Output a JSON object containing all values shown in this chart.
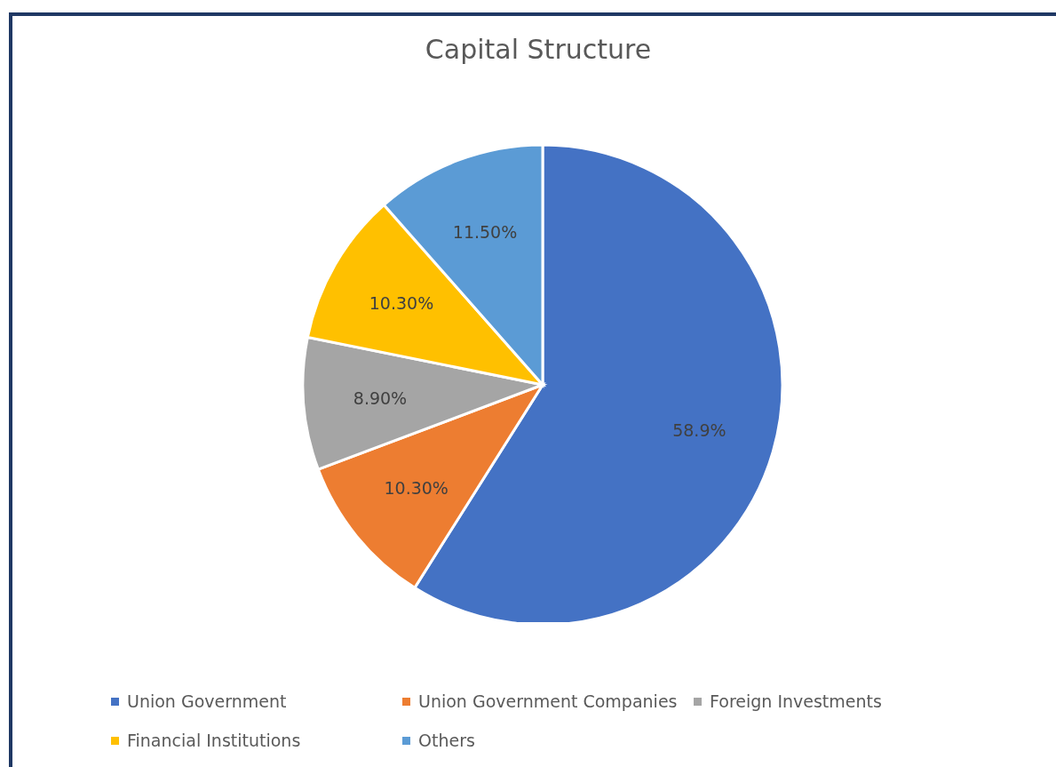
{
  "chart_data": {
    "type": "pie",
    "title": "Capital Structure",
    "categories": [
      "Union Government",
      "Union Government Companies",
      "Foreign Investments",
      "Financial Institutions",
      "Others"
    ],
    "values": [
      58.9,
      10.3,
      8.9,
      10.3,
      11.5
    ],
    "value_labels": [
      "58.9%",
      "10.30%",
      "8.90%",
      "10.30%",
      "11.50%"
    ],
    "colors": [
      "#4472c4",
      "#ed7d31",
      "#a5a5a5",
      "#ffc000",
      "#5b9bd5"
    ],
    "legend": "bottom"
  }
}
